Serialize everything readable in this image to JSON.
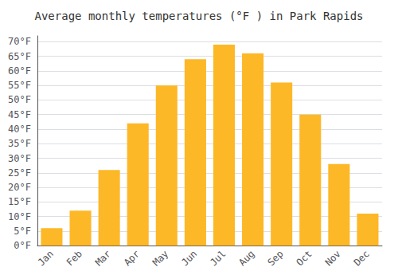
{
  "chart_data": {
    "type": "bar",
    "title": "Average monthly temperatures (°F ) in Park Rapids",
    "categories": [
      "Jan",
      "Feb",
      "Mar",
      "Apr",
      "May",
      "Jun",
      "Jul",
      "Aug",
      "Sep",
      "Oct",
      "Nov",
      "Dec"
    ],
    "values": [
      6,
      12,
      26,
      42,
      55,
      64,
      69,
      66,
      56,
      45,
      28,
      11
    ],
    "color": "#FDB827",
    "ylim": [
      0,
      72
    ],
    "yticks": [
      {
        "value": 0,
        "label": "0°F"
      },
      {
        "value": 5,
        "label": "5°F"
      },
      {
        "value": 10,
        "label": "10°F"
      },
      {
        "value": 15,
        "label": "15°F"
      },
      {
        "value": 20,
        "label": "20°F"
      },
      {
        "value": 25,
        "label": "25°F"
      },
      {
        "value": 30,
        "label": "30°F"
      },
      {
        "value": 35,
        "label": "35°F"
      },
      {
        "value": 40,
        "label": "40°F"
      },
      {
        "value": 45,
        "label": "45°F"
      },
      {
        "value": 50,
        "label": "50°F"
      },
      {
        "value": 55,
        "label": "55°F"
      },
      {
        "value": 60,
        "label": "60°F"
      },
      {
        "value": 65,
        "label": "65°F"
      },
      {
        "value": 70,
        "label": "70°F"
      }
    ],
    "grid": true
  }
}
